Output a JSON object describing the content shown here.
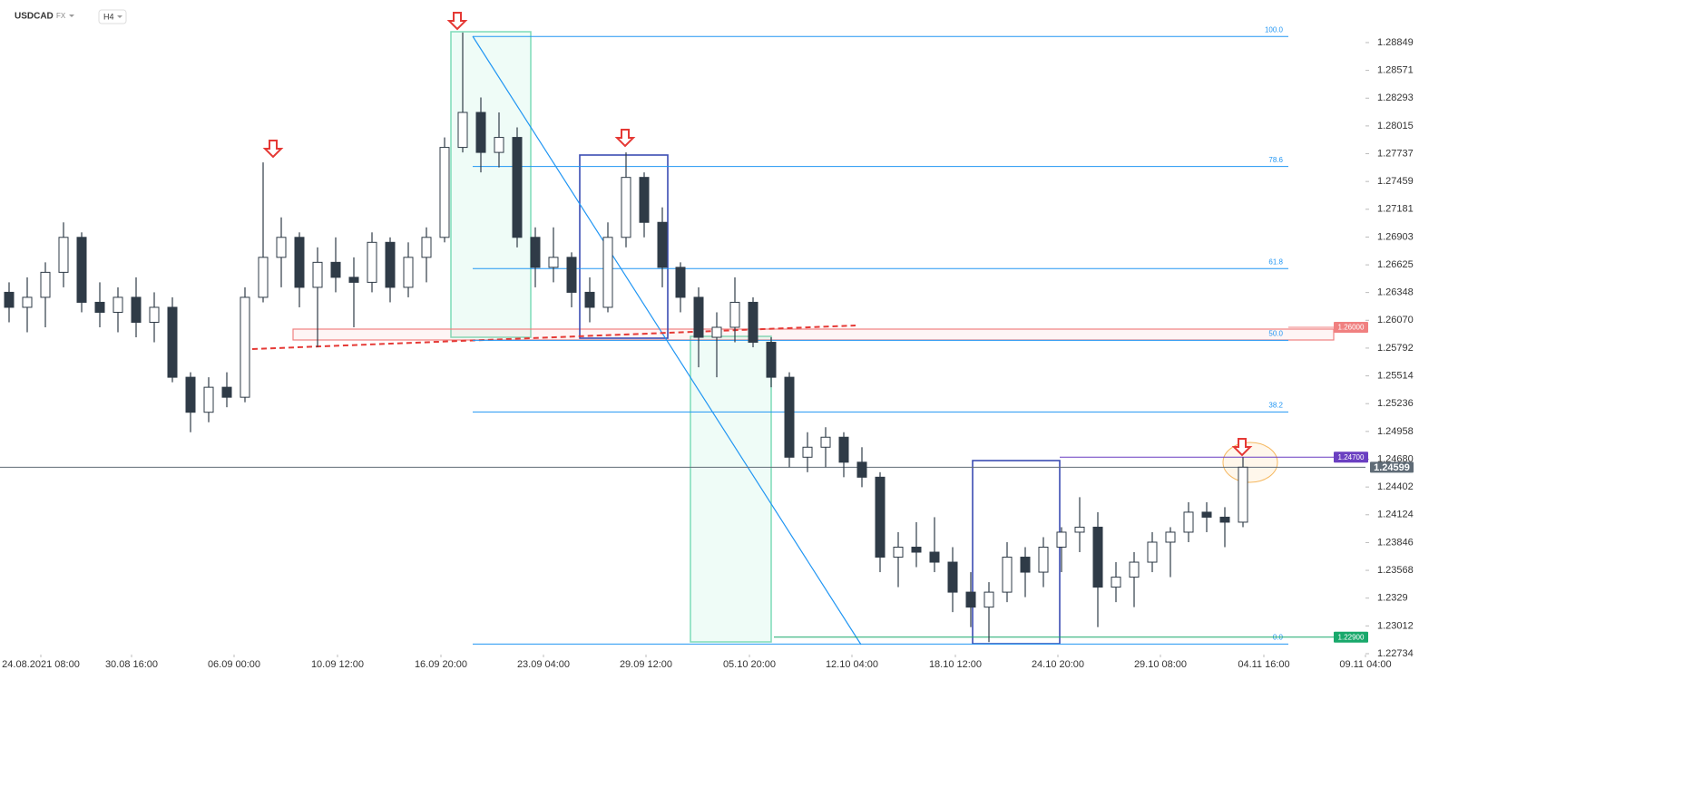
{
  "header": {
    "symbol": "USDCAD",
    "market": "FX",
    "interval": "H4"
  },
  "chart_data": {
    "type": "candlestick",
    "open": [
      1.2635,
      1.262,
      1.263,
      1.2655,
      1.269,
      1.2625,
      1.2615,
      1.263,
      1.2605,
      1.262,
      1.255,
      1.2515,
      1.254,
      1.253,
      1.263,
      1.267,
      1.269,
      1.264,
      1.2665,
      1.265,
      1.2645,
      1.2685,
      1.264,
      1.267,
      1.269,
      1.278,
      1.2815,
      1.2775,
      1.279,
      1.269,
      1.266,
      1.267,
      1.2635,
      1.262,
      1.269,
      1.275,
      1.2705,
      1.266,
      1.263,
      1.259,
      1.26,
      1.2625,
      1.2585,
      1.255,
      1.247,
      1.248,
      1.249,
      1.2465,
      1.245,
      1.237,
      1.238,
      1.2375,
      1.2365,
      1.2335,
      1.232,
      1.2335,
      1.237,
      1.2355,
      1.238,
      1.2395,
      1.24,
      1.234,
      1.235,
      1.2365,
      1.2385,
      1.2395,
      1.2415,
      1.241,
      1.2405
    ],
    "high": [
      1.2645,
      1.265,
      1.2665,
      1.2705,
      1.2695,
      1.2645,
      1.264,
      1.265,
      1.2635,
      1.263,
      1.2555,
      1.255,
      1.2555,
      1.264,
      1.2765,
      1.271,
      1.2695,
      1.268,
      1.269,
      1.267,
      1.2695,
      1.269,
      1.2685,
      1.27,
      1.279,
      1.2895,
      1.283,
      1.2815,
      1.28,
      1.27,
      1.27,
      1.2675,
      1.265,
      1.2705,
      1.2775,
      1.2755,
      1.272,
      1.2665,
      1.264,
      1.2615,
      1.265,
      1.263,
      1.259,
      1.2555,
      1.2495,
      1.25,
      1.2495,
      1.248,
      1.2455,
      1.2395,
      1.2405,
      1.241,
      1.238,
      1.2355,
      1.2345,
      1.2385,
      1.238,
      1.239,
      1.24,
      1.243,
      1.2415,
      1.2365,
      1.2375,
      1.2395,
      1.24,
      1.2425,
      1.2425,
      1.242,
      1.247
    ],
    "low": [
      1.2605,
      1.2595,
      1.26,
      1.264,
      1.2615,
      1.26,
      1.2595,
      1.259,
      1.2585,
      1.2545,
      1.2495,
      1.2505,
      1.252,
      1.2525,
      1.2625,
      1.264,
      1.262,
      1.258,
      1.2635,
      1.26,
      1.2635,
      1.2625,
      1.263,
      1.2645,
      1.2685,
      1.2775,
      1.2755,
      1.276,
      1.268,
      1.264,
      1.2645,
      1.262,
      1.2605,
      1.2615,
      1.268,
      1.269,
      1.264,
      1.2615,
      1.256,
      1.255,
      1.2585,
      1.258,
      1.254,
      1.246,
      1.2455,
      1.246,
      1.245,
      1.244,
      1.2355,
      1.234,
      1.236,
      1.2355,
      1.2315,
      1.23,
      1.2285,
      1.2325,
      1.233,
      1.234,
      1.2355,
      1.2375,
      1.23,
      1.2325,
      1.232,
      1.2355,
      1.235,
      1.2385,
      1.2395,
      1.238,
      1.24
    ],
    "close": [
      1.262,
      1.263,
      1.2655,
      1.269,
      1.2625,
      1.2615,
      1.263,
      1.2605,
      1.262,
      1.255,
      1.2515,
      1.254,
      1.253,
      1.263,
      1.267,
      1.269,
      1.264,
      1.2665,
      1.265,
      1.2645,
      1.2685,
      1.264,
      1.267,
      1.269,
      1.278,
      1.2815,
      1.2775,
      1.279,
      1.269,
      1.266,
      1.267,
      1.2635,
      1.262,
      1.269,
      1.275,
      1.2705,
      1.266,
      1.263,
      1.259,
      1.26,
      1.2625,
      1.2585,
      1.255,
      1.247,
      1.248,
      1.249,
      1.2465,
      1.245,
      1.237,
      1.238,
      1.2375,
      1.2365,
      1.2335,
      1.232,
      1.2335,
      1.237,
      1.2355,
      1.238,
      1.2395,
      1.24,
      1.234,
      1.235,
      1.2365,
      1.2385,
      1.2395,
      1.2415,
      1.241,
      1.2405,
      1.246
    ],
    "up_color": "#ffffff",
    "down_color": "#2f3b47",
    "wick_color": "#2f3b47",
    "xlim": [
      0,
      75.25
    ],
    "xticks": [
      {
        "value": 2.25,
        "label": "24.08.2021  08:00"
      },
      {
        "value": 7.25,
        "label": "30.08  16:00"
      },
      {
        "value": 12.9,
        "label": "06.09  00:00"
      },
      {
        "value": 18.6,
        "label": "10.09  12:00"
      },
      {
        "value": 24.3,
        "label": "16.09  20:00"
      },
      {
        "value": 29.95,
        "label": "23.09  04:00"
      },
      {
        "value": 35.6,
        "label": "29.09  12:00"
      },
      {
        "value": 41.3,
        "label": "05.10  20:00"
      },
      {
        "value": 46.95,
        "label": "12.10  04:00"
      },
      {
        "value": 52.65,
        "label": "18.10  12:00"
      },
      {
        "value": 58.3,
        "label": "24.10  20:00"
      },
      {
        "value": 63.95,
        "label": "29.10  08:00"
      },
      {
        "value": 69.65,
        "label": "04.11  16:00"
      },
      {
        "value": 75.25,
        "label": "09.11  04:00"
      }
    ],
    "ylim": [
      1.22725,
      1.29275
    ],
    "yticks": [
      1.28849,
      1.28571,
      1.28293,
      1.28015,
      1.27737,
      1.27459,
      1.27181,
      1.26903,
      1.26625,
      1.26348,
      {
        "value": 1.2607,
        "label": "1.26070"
      },
      1.25792,
      1.25514,
      1.25236,
      1.24958,
      {
        "value": 1.2468,
        "label": "1.24680"
      },
      1.24402,
      1.24124,
      1.23846,
      1.23568,
      1.2329,
      1.23012,
      1.22734
    ],
    "fibonacci": {
      "high": 1.2891,
      "low": 1.2283,
      "color": "#2196f3",
      "levels": [
        {
          "value": 100,
          "label": "100.0"
        },
        {
          "value": 78.6,
          "label": "78.6"
        },
        {
          "value": 61.8,
          "label": "61.8"
        },
        {
          "value": 50,
          "label": "50.0"
        },
        {
          "value": 38.2,
          "label": "38.2"
        },
        {
          "value": 0,
          "label": "0.0"
        }
      ]
    },
    "price_tags": [
      {
        "value": 1.26,
        "label": "1.26000",
        "color": "#f08080"
      },
      {
        "value": 1.247,
        "label": "1.24700",
        "color": "#6a3fc1"
      },
      {
        "value": 1.24599,
        "label": "1.24599",
        "color": "#5f6b76"
      },
      {
        "value": 1.229,
        "label": "1.22900",
        "color": "#18a86b"
      }
    ]
  }
}
